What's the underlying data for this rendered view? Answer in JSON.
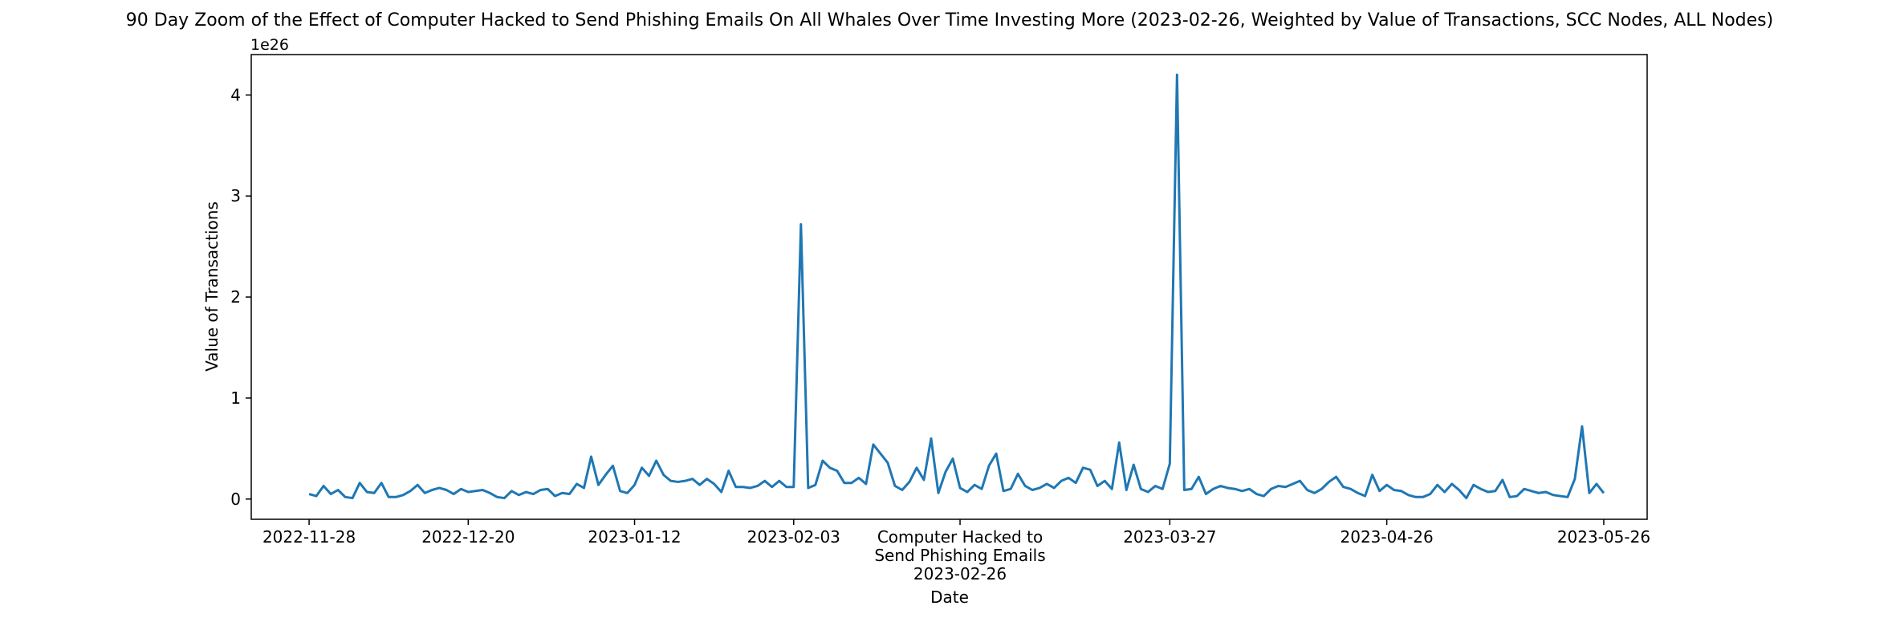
{
  "chart_data": {
    "type": "line",
    "title": "90 Day Zoom of the Effect of Computer Hacked to Send Phishing Emails On All Whales Over Time Investing More (2023-02-26, Weighted by Value of Transactions, SCC Nodes, ALL Nodes)",
    "xlabel": "Date",
    "ylabel": "Value of Transactions",
    "y_offset_label": "1e26",
    "y_multiplier": 1e+26,
    "x_range": [
      "2022-11-20",
      "2023-06-01"
    ],
    "ylim": [
      -0.2,
      4.4
    ],
    "grid": false,
    "legend": "none",
    "line_color": "#1f77b4",
    "x_ticks": [
      "2022-11-28",
      "2022-12-20",
      "2023-01-12",
      "2023-02-03",
      "2023-03-27",
      "2023-04-26",
      "2023-05-26"
    ],
    "y_ticks": [
      0,
      1,
      2,
      3,
      4
    ],
    "annotation": {
      "date": "2023-02-26",
      "lines": [
        "Computer Hacked to",
        "Send Phishing Emails",
        "2023-02-26"
      ]
    },
    "series": [
      {
        "start_date": "2022-11-28",
        "values": [
          0.05,
          0.03,
          0.13,
          0.05,
          0.09,
          0.02,
          0.01,
          0.16,
          0.07,
          0.06,
          0.16,
          0.02,
          0.02,
          0.04,
          0.08,
          0.14,
          0.06,
          0.09,
          0.11,
          0.09,
          0.05,
          0.1,
          0.07,
          0.08,
          0.09,
          0.06,
          0.02,
          0.01,
          0.08,
          0.04,
          0.07,
          0.05,
          0.09,
          0.1,
          0.03,
          0.06,
          0.05,
          0.15,
          0.11,
          0.42,
          0.14,
          0.24,
          0.33,
          0.08,
          0.06,
          0.14,
          0.31,
          0.23,
          0.38,
          0.24,
          0.18,
          0.17,
          0.18,
          0.2,
          0.14,
          0.2,
          0.15,
          0.07,
          0.28,
          0.12,
          0.12,
          0.11,
          0.13,
          0.18,
          0.12,
          0.18,
          0.12,
          0.12,
          2.72,
          0.11,
          0.14,
          0.38,
          0.31,
          0.28,
          0.16,
          0.16,
          0.21,
          0.15,
          0.54,
          0.45,
          0.36,
          0.13,
          0.09,
          0.17,
          0.31,
          0.19,
          0.6,
          0.06,
          0.27,
          0.4,
          0.11,
          0.07,
          0.14,
          0.1,
          0.33,
          0.45,
          0.08,
          0.1,
          0.25,
          0.13,
          0.09,
          0.11,
          0.15,
          0.11,
          0.18,
          0.21,
          0.16,
          0.31,
          0.29,
          0.13,
          0.18,
          0.1,
          0.56,
          0.09,
          0.34,
          0.1,
          0.07,
          0.13,
          0.1,
          0.35,
          4.2,
          0.09,
          0.1,
          0.22,
          0.05,
          0.1,
          0.13,
          0.11,
          0.1,
          0.08,
          0.1,
          0.05,
          0.03,
          0.1,
          0.13,
          0.12,
          0.15,
          0.18,
          0.09,
          0.06,
          0.1,
          0.17,
          0.22,
          0.12,
          0.1,
          0.06,
          0.03,
          0.24,
          0.08,
          0.14,
          0.09,
          0.08,
          0.04,
          0.02,
          0.02,
          0.05,
          0.14,
          0.07,
          0.15,
          0.09,
          0.01,
          0.14,
          0.1,
          0.07,
          0.08,
          0.19,
          0.02,
          0.03,
          0.1,
          0.08,
          0.06,
          0.07,
          0.04,
          0.03,
          0.02,
          0.2,
          0.72,
          0.06,
          0.15,
          0.06
        ]
      }
    ]
  }
}
